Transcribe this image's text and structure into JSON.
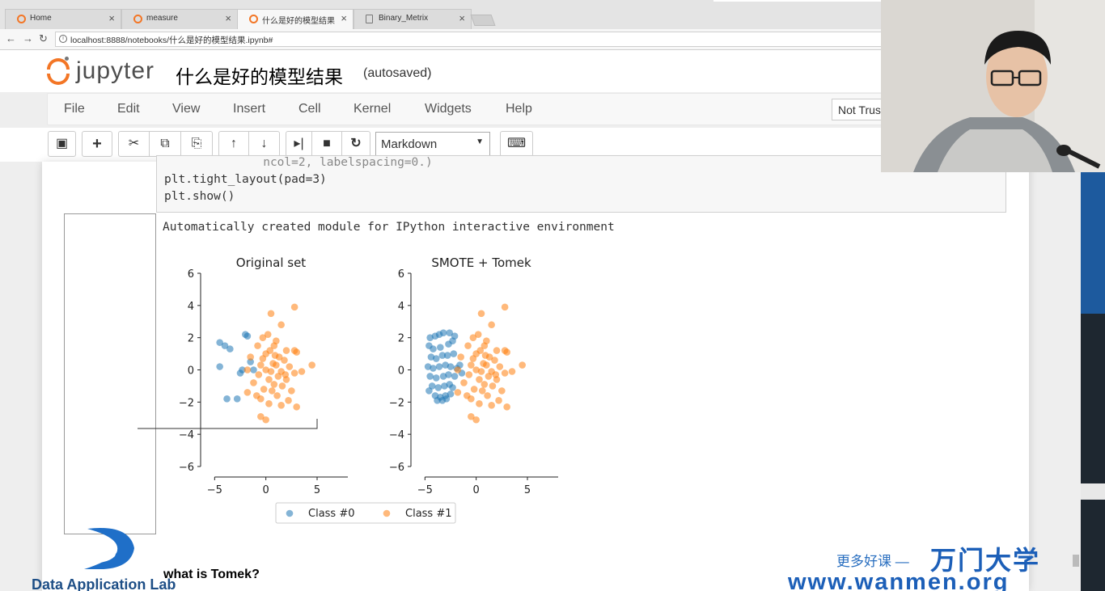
{
  "browser": {
    "tabs": [
      {
        "label": "Home",
        "icon": "jupyter-icon"
      },
      {
        "label": "measure",
        "icon": "jupyter-icon"
      },
      {
        "label": "什么是好的模型结果",
        "icon": "jupyter-icon"
      },
      {
        "label": "Binary_Metrix",
        "icon": "document-icon"
      }
    ],
    "url": "localhost:8888/notebooks/什么是好的模型结果.ipynb#"
  },
  "jupyter": {
    "logo_text": "jupyter",
    "notebook_title": "什么是好的模型结果",
    "save_status": "(autosaved)",
    "trust_status": "Not Trusted",
    "menu": [
      "File",
      "Edit",
      "View",
      "Insert",
      "Cell",
      "Kernel",
      "Widgets",
      "Help"
    ],
    "cell_type": "Markdown"
  },
  "cell": {
    "code_lines": [
      "              ncol=2, labelspacing=0.)",
      "plt.tight_layout(pad=3)",
      "plt.show()"
    ],
    "output_text": "Automatically created module for IPython interactive environment",
    "markdown_heading": "what is Tomek?"
  },
  "chart_data": [
    {
      "type": "scatter",
      "title": "Original set",
      "xlim": [
        -7,
        8
      ],
      "ylim": [
        -6,
        6
      ],
      "xticks": [
        -5,
        0,
        5
      ],
      "yticks": [
        -6,
        -4,
        -2,
        0,
        2,
        4,
        6
      ],
      "series": [
        {
          "name": "Class #0",
          "color": "#1f77b4",
          "points": [
            [
              -4.5,
              1.7
            ],
            [
              -4,
              1.5
            ],
            [
              -3.5,
              1.3
            ],
            [
              -2,
              2.2
            ],
            [
              -1.8,
              2.1
            ],
            [
              -2.5,
              -0.2
            ],
            [
              -2.3,
              0
            ],
            [
              -1.2,
              0
            ],
            [
              -3.8,
              -1.8
            ],
            [
              -2.8,
              -1.8
            ],
            [
              -4.5,
              0.2
            ],
            [
              -1.5,
              0.5
            ]
          ]
        },
        {
          "name": "Class #1",
          "color": "#ff7f0e",
          "points": [
            [
              0.5,
              3.5
            ],
            [
              2.8,
              3.9
            ],
            [
              1.5,
              2.8
            ],
            [
              0.2,
              2.2
            ],
            [
              -0.3,
              2
            ],
            [
              1,
              1.8
            ],
            [
              0.8,
              1.5
            ],
            [
              -0.8,
              1.5
            ],
            [
              2,
              1.2
            ],
            [
              2.8,
              1.2
            ],
            [
              3,
              1.1
            ],
            [
              0,
              1
            ],
            [
              1.3,
              0.8
            ],
            [
              -1.5,
              0.8
            ],
            [
              1.8,
              0.6
            ],
            [
              0.7,
              0.4
            ],
            [
              -0.5,
              0.3
            ],
            [
              1,
              0.3
            ],
            [
              4.5,
              0.3
            ],
            [
              2.3,
              0.2
            ],
            [
              0,
              0
            ],
            [
              -1.8,
              0
            ],
            [
              0.5,
              -0.1
            ],
            [
              1.5,
              -0.1
            ],
            [
              3.5,
              -0.1
            ],
            [
              2.8,
              -0.2
            ],
            [
              -0.7,
              -0.3
            ],
            [
              1.2,
              -0.4
            ],
            [
              0.3,
              -0.6
            ],
            [
              2,
              -0.6
            ],
            [
              -1.2,
              -0.8
            ],
            [
              0.8,
              -0.9
            ],
            [
              1.6,
              -1
            ],
            [
              -0.2,
              -1.2
            ],
            [
              0.6,
              -1.3
            ],
            [
              2.5,
              -1.3
            ],
            [
              -1.8,
              -1.4
            ],
            [
              1.1,
              -1.6
            ],
            [
              -0.5,
              -1.8
            ],
            [
              2.2,
              -1.9
            ],
            [
              0.3,
              -2.1
            ],
            [
              1.5,
              -2.2
            ],
            [
              -0.9,
              -1.6
            ],
            [
              3,
              -2.3
            ],
            [
              -0.5,
              -2.9
            ],
            [
              0,
              -3.1
            ],
            [
              0.4,
              1.2
            ],
            [
              -0.3,
              0.7
            ],
            [
              1.9,
              -0.3
            ],
            [
              0.9,
              0.9
            ]
          ]
        }
      ]
    },
    {
      "type": "scatter",
      "title": "SMOTE + Tomek",
      "xlim": [
        -7,
        8
      ],
      "ylim": [
        -6,
        6
      ],
      "xticks": [
        -5,
        0,
        5
      ],
      "yticks": [
        -6,
        -4,
        -2,
        0,
        2,
        4,
        6
      ],
      "series": [
        {
          "name": "Class #0",
          "color": "#1f77b4",
          "points": [
            [
              -4.5,
              2
            ],
            [
              -4,
              2.1
            ],
            [
              -3.6,
              2.2
            ],
            [
              -3.2,
              2.3
            ],
            [
              -2.6,
              2.3
            ],
            [
              -2.1,
              2.1
            ],
            [
              -4.6,
              1.5
            ],
            [
              -4.2,
              1.3
            ],
            [
              -3.5,
              1.4
            ],
            [
              -2.7,
              1.6
            ],
            [
              -2.3,
              1.8
            ],
            [
              -4.4,
              0.8
            ],
            [
              -3.9,
              0.7
            ],
            [
              -3.3,
              0.9
            ],
            [
              -2.8,
              0.9
            ],
            [
              -2.2,
              1
            ],
            [
              -4.7,
              0.2
            ],
            [
              -4.2,
              0.1
            ],
            [
              -3.6,
              0.2
            ],
            [
              -3,
              0.3
            ],
            [
              -2.5,
              0.2
            ],
            [
              -1.9,
              0.1
            ],
            [
              -4.5,
              -0.4
            ],
            [
              -3.9,
              -0.5
            ],
            [
              -3.2,
              -0.4
            ],
            [
              -2.7,
              -0.3
            ],
            [
              -2.1,
              -0.4
            ],
            [
              -4.3,
              -1
            ],
            [
              -3.7,
              -1.1
            ],
            [
              -3.1,
              -1
            ],
            [
              -2.6,
              -0.9
            ],
            [
              -4,
              -1.6
            ],
            [
              -3.5,
              -1.7
            ],
            [
              -3,
              -1.6
            ],
            [
              -2.5,
              -1.5
            ],
            [
              -3.8,
              -1.9
            ],
            [
              -3.3,
              -1.9
            ],
            [
              -2.9,
              -1.8
            ],
            [
              -4.6,
              -1.3
            ],
            [
              -2.3,
              -1.1
            ],
            [
              -1.6,
              0.3
            ],
            [
              -1.4,
              -0.2
            ]
          ]
        },
        {
          "name": "Class #1",
          "color": "#ff7f0e",
          "points": [
            [
              0.5,
              3.5
            ],
            [
              2.8,
              3.9
            ],
            [
              1.5,
              2.8
            ],
            [
              0.2,
              2.2
            ],
            [
              -0.3,
              2
            ],
            [
              1,
              1.8
            ],
            [
              0.8,
              1.5
            ],
            [
              -0.8,
              1.5
            ],
            [
              2,
              1.2
            ],
            [
              2.8,
              1.2
            ],
            [
              3,
              1.1
            ],
            [
              0,
              1
            ],
            [
              1.3,
              0.8
            ],
            [
              -1.5,
              0.8
            ],
            [
              1.8,
              0.6
            ],
            [
              0.7,
              0.4
            ],
            [
              -0.5,
              0.3
            ],
            [
              1,
              0.3
            ],
            [
              4.5,
              0.3
            ],
            [
              2.3,
              0.2
            ],
            [
              0,
              0
            ],
            [
              -1.8,
              0
            ],
            [
              0.5,
              -0.1
            ],
            [
              1.5,
              -0.1
            ],
            [
              3.5,
              -0.1
            ],
            [
              2.8,
              -0.2
            ],
            [
              -0.7,
              -0.3
            ],
            [
              1.2,
              -0.4
            ],
            [
              0.3,
              -0.6
            ],
            [
              2,
              -0.6
            ],
            [
              -1.2,
              -0.8
            ],
            [
              0.8,
              -0.9
            ],
            [
              1.6,
              -1
            ],
            [
              -0.2,
              -1.2
            ],
            [
              0.6,
              -1.3
            ],
            [
              2.5,
              -1.3
            ],
            [
              -1.8,
              -1.4
            ],
            [
              1.1,
              -1.6
            ],
            [
              -0.5,
              -1.8
            ],
            [
              2.2,
              -1.9
            ],
            [
              0.3,
              -2.1
            ],
            [
              1.5,
              -2.2
            ],
            [
              -0.9,
              -1.6
            ],
            [
              3,
              -2.3
            ],
            [
              -0.5,
              -2.9
            ],
            [
              0,
              -3.1
            ],
            [
              0.4,
              1.2
            ],
            [
              -0.3,
              0.7
            ],
            [
              1.9,
              -0.3
            ],
            [
              0.9,
              0.9
            ]
          ]
        }
      ]
    }
  ],
  "legend": {
    "items": [
      "Class #0",
      "Class #1"
    ],
    "colors": [
      "#1f77b4",
      "#ff7f0e"
    ]
  },
  "overlays": {
    "org_logo_text": "Data Application Lab",
    "watermark_slogan": "更多好课 —",
    "watermark_brand": "万门大学",
    "watermark_url": "www.wanmen.org"
  }
}
